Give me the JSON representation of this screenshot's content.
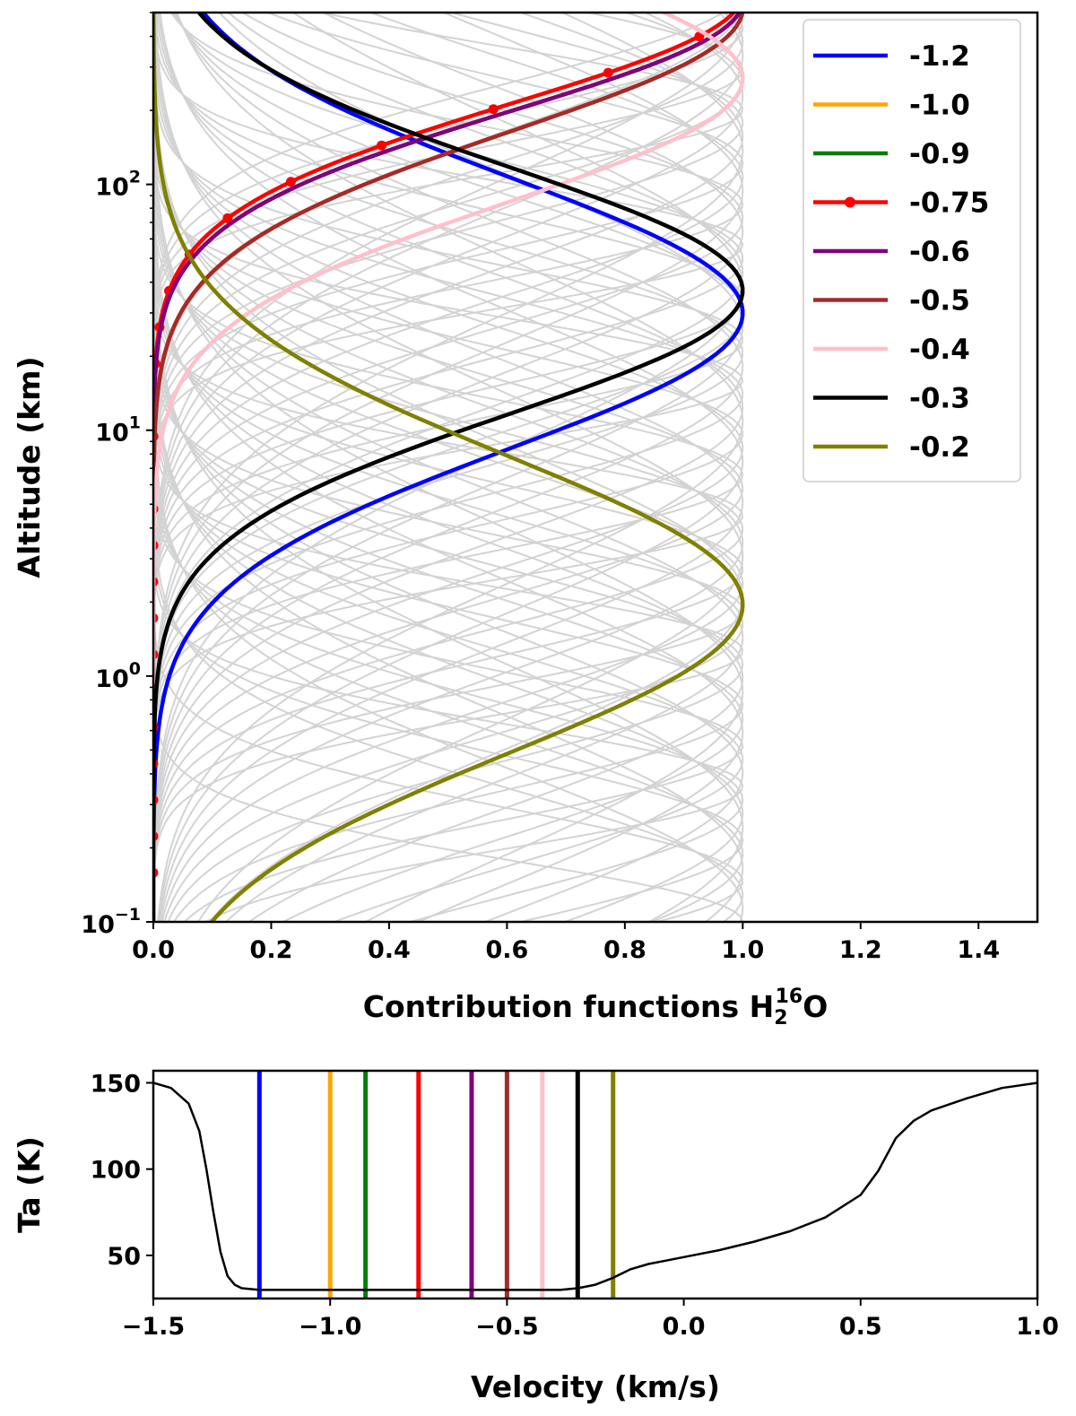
{
  "chart_data": [
    {
      "type": "line",
      "panel": "top",
      "xlabel": "Contribution functions H",
      "xlabel_sub": "2",
      "xlabel_sup": "16",
      "xlabel_tail": "O",
      "ylabel": "Altitude (km)",
      "xlim": [
        0.0,
        1.5
      ],
      "ylim": [
        0.1,
        500
      ],
      "yscale": "log",
      "x_ticks": [
        "0.0",
        "0.2",
        "0.4",
        "0.6",
        "0.8",
        "1.0",
        "1.2",
        "1.4"
      ],
      "y_ticks": [
        {
          "value": 0.1,
          "base": "10",
          "exp": "−1"
        },
        {
          "value": 1,
          "base": "10",
          "exp": "0"
        },
        {
          "value": 10,
          "base": "10",
          "exp": "1"
        },
        {
          "value": 100,
          "base": "10",
          "exp": "2"
        }
      ],
      "legend_position": "top-right",
      "background_curves": "many light-gray contribution functions (normalized, peak 1.0) across velocity channels",
      "series": [
        {
          "name": "-1.2",
          "color": "#0000ff",
          "peak_altitude_km": 30,
          "width": 0.55
        },
        {
          "name": "-1.0",
          "color": "#ffa500",
          "peak_altitude_km": 520,
          "width": 0.5
        },
        {
          "name": "-0.9",
          "color": "#008000",
          "peak_altitude_km": 560,
          "width": 0.45
        },
        {
          "name": "-0.75",
          "color": "#ff0000",
          "peak_altitude_km": 600,
          "width": 0.45,
          "markers": true
        },
        {
          "name": "-0.6",
          "color": "#800080",
          "peak_altitude_km": 560,
          "width": 0.45
        },
        {
          "name": "-0.5",
          "color": "#a52a2a",
          "peak_altitude_km": 520,
          "width": 0.5
        },
        {
          "name": "-0.4",
          "color": "#ffc0cb",
          "peak_altitude_km": 270,
          "width": 0.5
        },
        {
          "name": "-0.3",
          "color": "#000000",
          "peak_altitude_km": 37,
          "width": 0.5
        },
        {
          "name": "-0.2",
          "color": "#808000",
          "peak_altitude_km": 1.95,
          "width": 0.6
        }
      ]
    },
    {
      "type": "line",
      "panel": "bottom",
      "xlabel": "Velocity (km/s)",
      "ylabel": "Ta (K)",
      "xlim": [
        -1.5,
        1.0
      ],
      "ylim": [
        25,
        157
      ],
      "x_ticks": [
        "−1.5",
        "−1.0",
        "−0.5",
        "0.0",
        "0.5",
        "1.0"
      ],
      "y_ticks": [
        "50",
        "100",
        "150"
      ],
      "spectrum": {
        "x": [
          -1.5,
          -1.45,
          -1.4,
          -1.37,
          -1.35,
          -1.33,
          -1.31,
          -1.29,
          -1.27,
          -1.25,
          -1.2,
          -1.0,
          -0.6,
          -0.35,
          -0.3,
          -0.25,
          -0.2,
          -0.15,
          -0.1,
          -0.05,
          0.0,
          0.1,
          0.2,
          0.3,
          0.4,
          0.5,
          0.55,
          0.6,
          0.65,
          0.7,
          0.8,
          0.9,
          1.0
        ],
        "y": [
          150,
          147,
          138,
          122,
          100,
          75,
          52,
          38,
          33,
          31,
          30,
          30,
          30,
          30,
          31,
          33,
          37,
          42,
          45,
          47,
          49,
          53,
          58,
          64,
          72,
          85,
          99,
          118,
          128,
          134,
          141,
          147,
          150
        ]
      },
      "velocity_markers": [
        {
          "velocity": -1.2,
          "color": "#0000ff"
        },
        {
          "velocity": -1.0,
          "color": "#ffa500"
        },
        {
          "velocity": -0.9,
          "color": "#008000"
        },
        {
          "velocity": -0.75,
          "color": "#ff0000"
        },
        {
          "velocity": -0.6,
          "color": "#800080"
        },
        {
          "velocity": -0.5,
          "color": "#a52a2a"
        },
        {
          "velocity": -0.4,
          "color": "#ffc0cb"
        },
        {
          "velocity": -0.3,
          "color": "#000000"
        },
        {
          "velocity": -0.2,
          "color": "#808000"
        }
      ]
    }
  ]
}
